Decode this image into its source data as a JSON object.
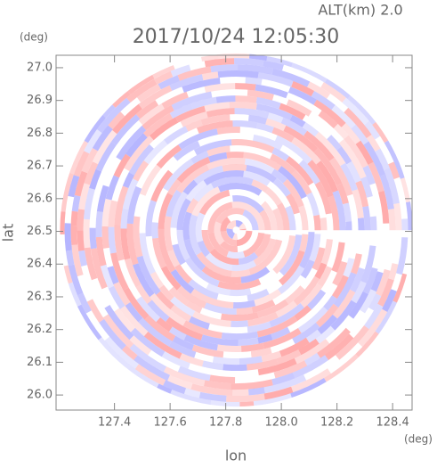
{
  "chart_data": {
    "type": "radar-ppi",
    "title": "2017/10/24 12:05:30",
    "subtitle": "ALT(km) 2.0",
    "x_label": "lon",
    "y_label": "lat",
    "x_unit": "(deg)",
    "y_unit": "(deg)",
    "xlim": [
      127.19,
      128.47
    ],
    "ylim": [
      25.954,
      27.038
    ],
    "xticks": [
      127.4,
      127.6,
      127.8,
      {
        "value": 128.0,
        "label": "128.0"
      },
      128.2,
      128.4
    ],
    "yticks": [
      {
        "value": 26.0,
        "label": "26.0"
      },
      26.1,
      26.2,
      26.3,
      26.4,
      26.5,
      26.6,
      26.7,
      26.8,
      26.9,
      {
        "value": 27.0,
        "label": "27.0"
      }
    ],
    "center": [
      127.838,
      26.504
    ],
    "colors": [
      "#ff9a9a",
      "#a8a8ff"
    ]
  }
}
